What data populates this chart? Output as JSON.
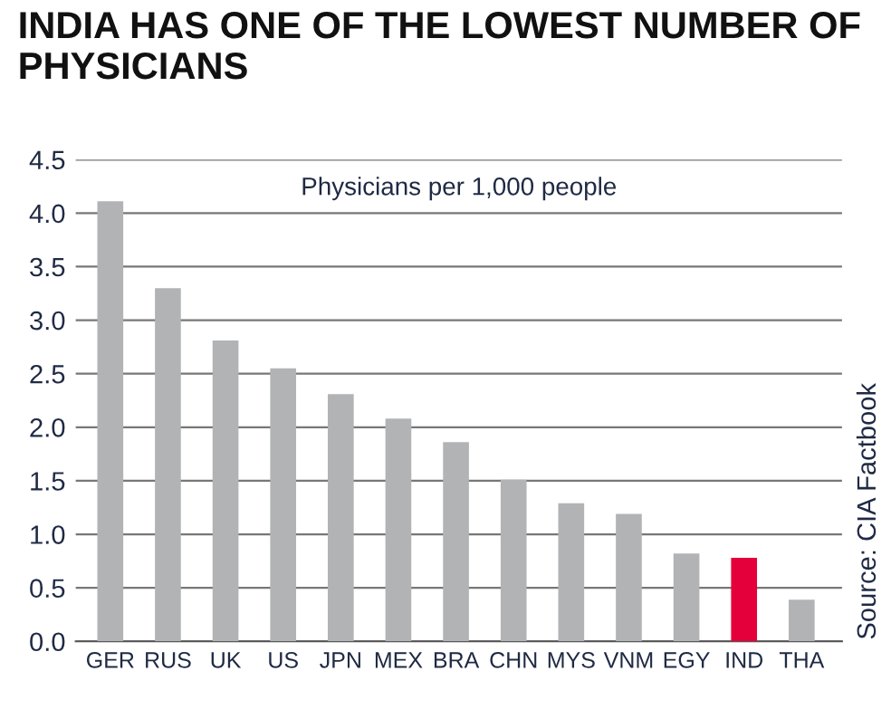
{
  "chart_data": {
    "type": "bar",
    "title": "INDIA HAS ONE OF THE LOWEST NUMBER OF\nPHYSICIANS",
    "categories": [
      "GER",
      "RUS",
      "UK",
      "US",
      "JPN",
      "MEX",
      "BRA",
      "CHN",
      "MYS",
      "VNM",
      "EGY",
      "IND",
      "THA"
    ],
    "values": [
      4.11,
      3.3,
      2.81,
      2.55,
      2.31,
      2.08,
      1.86,
      1.51,
      1.29,
      1.19,
      0.82,
      0.78,
      0.39
    ],
    "colors": [
      "#b2b3b5",
      "#b2b3b5",
      "#b2b3b5",
      "#b2b3b5",
      "#b2b3b5",
      "#b2b3b5",
      "#b2b3b5",
      "#b2b3b5",
      "#b2b3b5",
      "#b2b3b5",
      "#b2b3b5",
      "#e4003b",
      "#b2b3b5"
    ],
    "ylim": [
      0,
      4.5
    ],
    "yticks": [
      {
        "value": 0,
        "label": "0.0"
      },
      {
        "value": 0.5,
        "label": "0.5"
      },
      {
        "value": 1,
        "label": "1.0"
      },
      {
        "value": 1.5,
        "label": "1.5"
      },
      {
        "value": 2,
        "label": "2.0"
      },
      {
        "value": 2.5,
        "label": "2.5"
      },
      {
        "value": 3,
        "label": "3.0"
      },
      {
        "value": 3.5,
        "label": "3.5"
      },
      {
        "value": 4,
        "label": "4.0"
      },
      {
        "value": 4.5,
        "label": "4.5"
      }
    ],
    "grid": "y",
    "annotations": [
      "Physicians per 1,000 people",
      "Source: CIA Factbook"
    ]
  }
}
